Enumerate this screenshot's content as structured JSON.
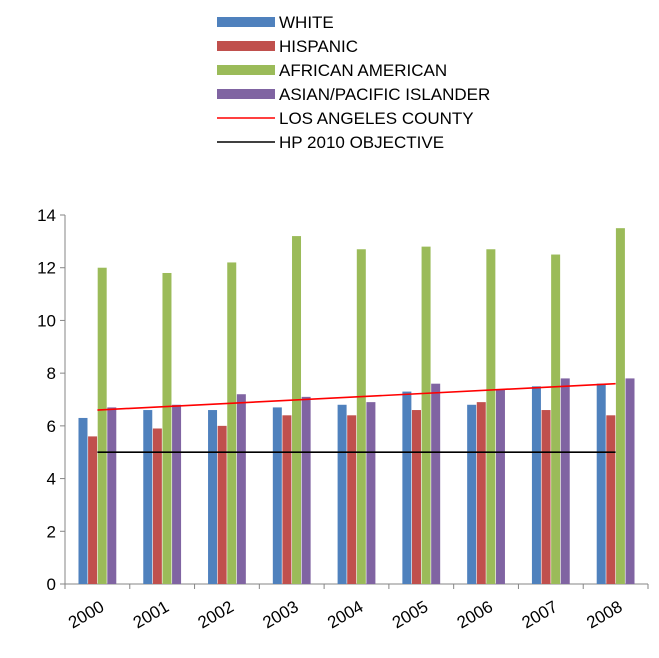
{
  "chart_data": {
    "type": "bar",
    "categories": [
      "2000",
      "2001",
      "2002",
      "2003",
      "2004",
      "2005",
      "2006",
      "2007",
      "2008"
    ],
    "series": [
      {
        "name": "WHITE",
        "color": "#4f81bd",
        "values": [
          6.3,
          6.6,
          6.6,
          6.7,
          6.8,
          7.3,
          6.8,
          7.5,
          7.6
        ]
      },
      {
        "name": "HISPANIC",
        "color": "#c0504d",
        "values": [
          5.6,
          5.9,
          6.0,
          6.4,
          6.4,
          6.6,
          6.9,
          6.6,
          6.4
        ]
      },
      {
        "name": "AFRICAN AMERICAN",
        "color": "#9bbb59",
        "values": [
          12.0,
          11.8,
          12.2,
          13.2,
          12.7,
          12.8,
          12.7,
          12.5,
          13.5
        ]
      },
      {
        "name": "ASIAN/PACIFIC ISLANDER",
        "color": "#8064a2",
        "values": [
          6.7,
          6.8,
          7.2,
          7.1,
          6.9,
          7.6,
          7.4,
          7.8,
          7.8
        ]
      }
    ],
    "lines": [
      {
        "name": "LOS ANGELES COUNTY",
        "color": "#ff0000",
        "start": 6.6,
        "end": 7.6
      },
      {
        "name": "HP 2010 OBJECTIVE",
        "color": "#000000",
        "start": 5.0,
        "end": 5.0
      }
    ],
    "ylim": [
      0,
      14
    ],
    "yticks": [
      0,
      2,
      4,
      6,
      8,
      10,
      12,
      14
    ],
    "grid": false,
    "legend_position": "top"
  }
}
